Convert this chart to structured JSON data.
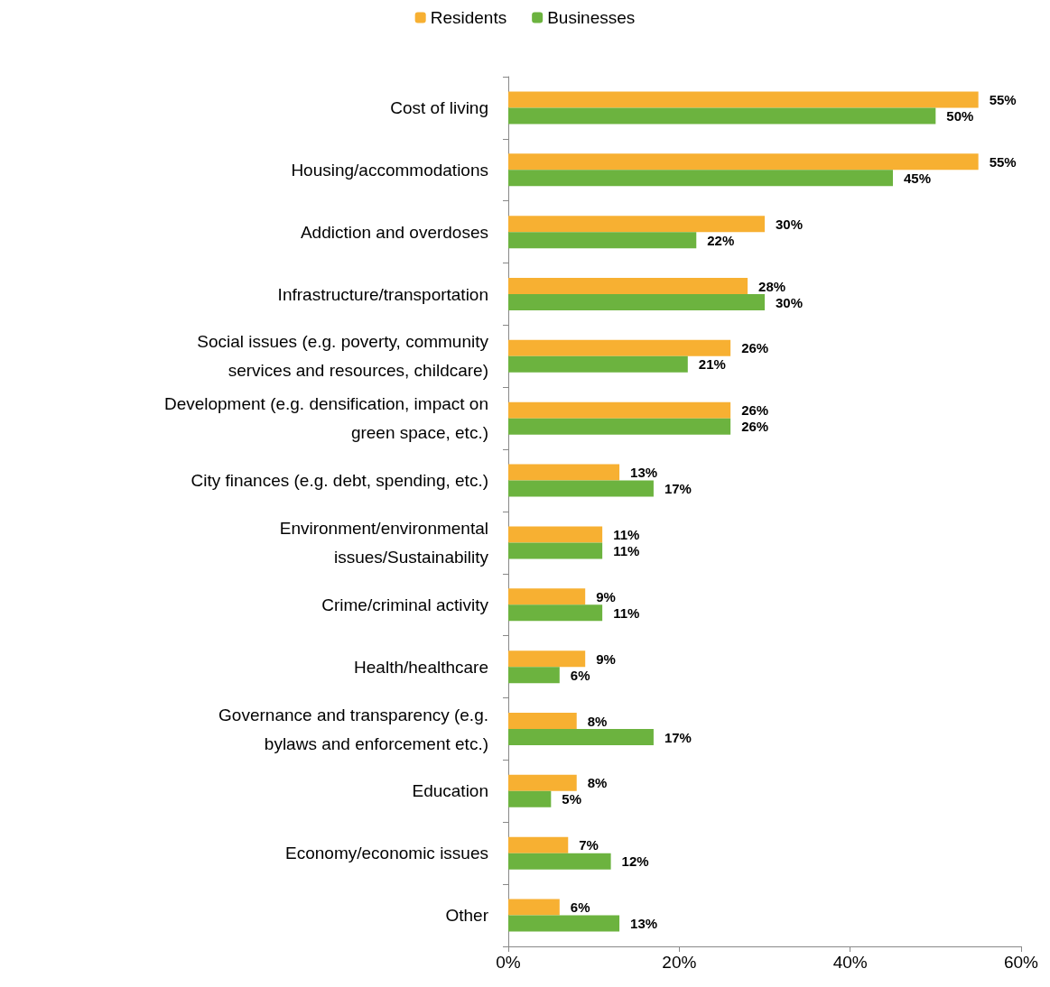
{
  "chart_data": {
    "type": "bar",
    "orientation": "horizontal",
    "legend": "top",
    "grid": false,
    "categories": [
      "Cost of living",
      "Housing/accommodations",
      "Addiction and overdoses",
      "Infrastructure/transportation",
      "Social issues (e.g. poverty, community\nservices and resources, childcare)",
      "Development (e.g. densification, impact on\ngreen space, etc.)",
      "City finances (e.g. debt, spending, etc.)",
      "Environment/environmental\nissues/Sustainability",
      "Crime/criminal activity",
      "Health/healthcare",
      "Governance and transparency (e.g.\nbylaws and enforcement etc.)",
      "Education",
      "Economy/economic issues",
      "Other"
    ],
    "series": [
      {
        "name": "Residents",
        "color": "#f7b032",
        "values": [
          55,
          55,
          30,
          28,
          26,
          26,
          13,
          11,
          9,
          9,
          8,
          8,
          7,
          6
        ],
        "value_labels": [
          "55%",
          "55%",
          "30%",
          "28%",
          "26%",
          "26%",
          "13%",
          "11%",
          "9%",
          "9%",
          "8%",
          "8%",
          "7%",
          "6%"
        ]
      },
      {
        "name": "Businesses",
        "color": "#6cb33f",
        "values": [
          50,
          45,
          22,
          30,
          21,
          26,
          17,
          11,
          11,
          6,
          17,
          5,
          12,
          13
        ],
        "value_labels": [
          "50%",
          "45%",
          "22%",
          "30%",
          "21%",
          "26%",
          "17%",
          "11%",
          "11%",
          "6%",
          "17%",
          "5%",
          "12%",
          "13%"
        ]
      }
    ],
    "xlim": [
      0,
      60
    ],
    "xticks": [
      {
        "value": 0,
        "label": "0%"
      },
      {
        "value": 20,
        "label": "20%"
      },
      {
        "value": 40,
        "label": "40%"
      },
      {
        "value": 60,
        "label": "60%"
      }
    ]
  }
}
